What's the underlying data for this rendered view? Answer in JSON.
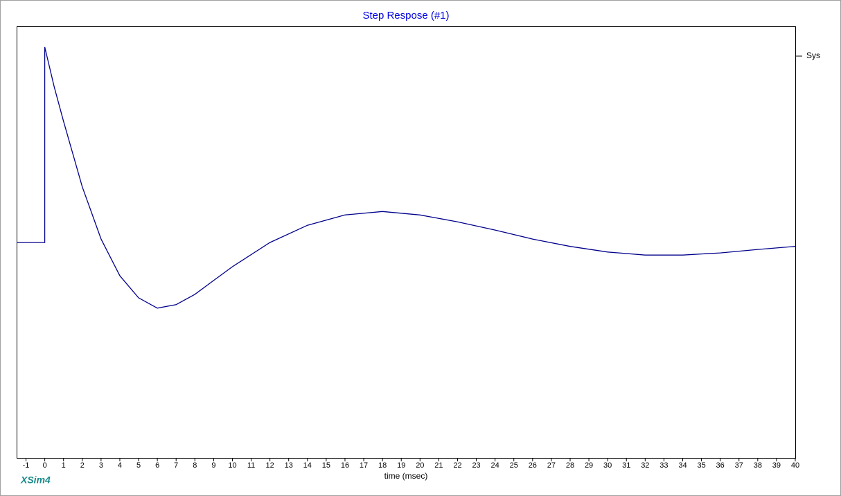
{
  "chart_data": {
    "type": "line",
    "title": "Step Respose (#1)",
    "x_label": "time (msec)",
    "brand": "XSim4",
    "x": [
      -1.5,
      0,
      0,
      0.5,
      1,
      2,
      3,
      4,
      5,
      6,
      7,
      8,
      9,
      10,
      12,
      14,
      16,
      18,
      20,
      22,
      24,
      26,
      28,
      30,
      32,
      34,
      36,
      38,
      40
    ],
    "series": [
      {
        "name": "Sys",
        "color": "#00008b",
        "values": [
          49.9,
          49.9,
          95.2,
          86.0,
          78.0,
          62.8,
          50.7,
          42.2,
          37.1,
          34.7,
          35.5,
          37.9,
          41.1,
          44.3,
          49.9,
          53.9,
          56.3,
          57.1,
          56.3,
          54.7,
          52.8,
          50.7,
          49.0,
          47.7,
          47.0,
          47.0,
          47.5,
          48.3,
          49.0
        ]
      }
    ],
    "xlim": [
      -1.5,
      40
    ],
    "ylim": [
      0,
      100
    ],
    "xticks": [
      -1,
      0,
      1,
      2,
      3,
      4,
      5,
      6,
      7,
      8,
      9,
      10,
      11,
      12,
      13,
      14,
      15,
      16,
      17,
      18,
      19,
      20,
      21,
      22,
      23,
      24,
      25,
      26,
      27,
      28,
      29,
      30,
      31,
      32,
      33,
      34,
      35,
      36,
      37,
      38,
      39,
      40
    ],
    "legend": "right",
    "grid": false
  }
}
